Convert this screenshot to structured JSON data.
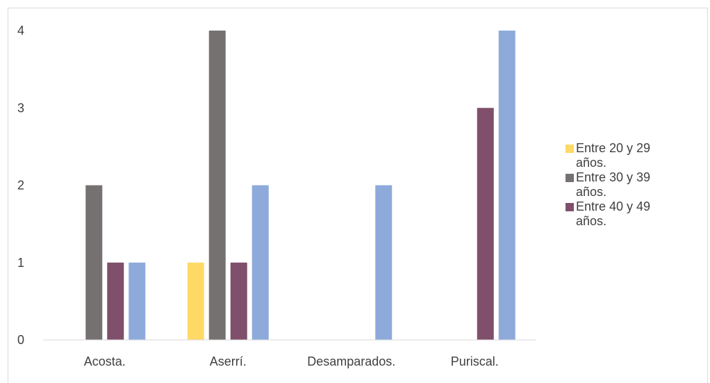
{
  "chart_data": {
    "type": "bar",
    "categories": [
      "Acosta.",
      "Aserrí.",
      "Desamparados.",
      "Puriscal."
    ],
    "series": [
      {
        "name": "Entre 20 y 29 años.",
        "color": "#ffd966",
        "values": [
          0,
          1,
          0,
          0
        ]
      },
      {
        "name": "Entre 30 y 39 años.",
        "color": "#767171",
        "values": [
          2,
          4,
          0,
          0
        ]
      },
      {
        "name": "Entre 40 y 49 años.",
        "color": "#7f4f6b",
        "values": [
          1,
          1,
          0,
          3
        ]
      },
      {
        "name": "",
        "color": "#8eaadb",
        "values": [
          1,
          2,
          2,
          4
        ]
      }
    ],
    "yticks": [
      "0",
      "1",
      "2",
      "3",
      "4"
    ],
    "ylim": [
      0,
      4
    ],
    "grid": false,
    "legend_position": "right",
    "title": "",
    "xlabel": "",
    "ylabel": ""
  },
  "legend": [
    {
      "label": "Entre 20 y 29 años.",
      "color": "#ffd966"
    },
    {
      "label": "Entre 30 y 39 años.",
      "color": "#767171"
    },
    {
      "label": "Entre 40 y 49 años.",
      "color": "#7f4f6b"
    }
  ]
}
